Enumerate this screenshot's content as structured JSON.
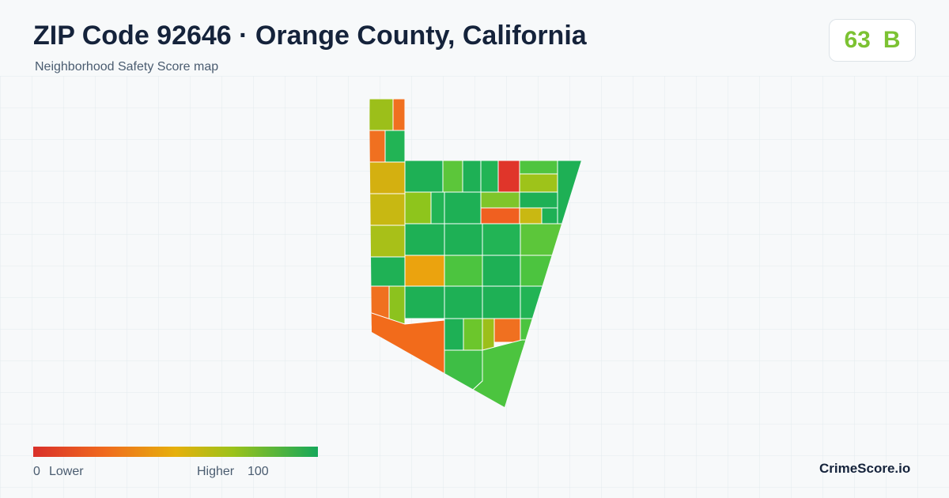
{
  "header": {
    "title": "ZIP Code 92646 · Orange County, California",
    "subtitle": "Neighborhood Safety Score map"
  },
  "score": {
    "value": 63,
    "grade": "B"
  },
  "legend": {
    "min": 0,
    "min_label": "Lower",
    "max_label": "Higher",
    "max": 100
  },
  "brand": "CrimeScore.io"
}
